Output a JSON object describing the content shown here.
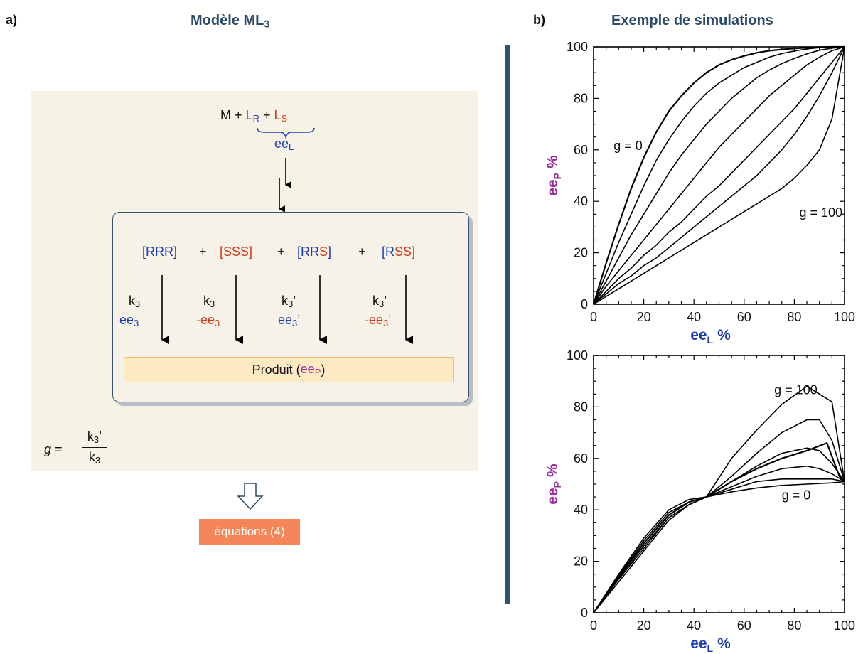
{
  "panel_a": {
    "label": "a)",
    "title": "Modèle ML",
    "title_sub": "3",
    "reagents": {
      "m": "M",
      "plus": "+",
      "lr": "L",
      "lr_sub": "R",
      "ls": "L",
      "ls_sub": "S",
      "eel": "ee",
      "eel_sub": "L"
    },
    "species": [
      {
        "pre": "[",
        "a": "RRR",
        "b": "",
        "post": "]"
      },
      {
        "pre": "[",
        "a": "",
        "b": "SSS",
        "post": "]"
      },
      {
        "pre": "[",
        "a": "RR",
        "b": "S",
        "post": "]"
      },
      {
        "pre": "[",
        "a": "R",
        "b": "SS",
        "post": "]"
      }
    ],
    "plus": "+",
    "rates": [
      {
        "k": "k",
        "k_sub": "3",
        "k_prime": "",
        "ee": "ee",
        "ee_sub": "3",
        "ee_prime": "",
        "ee_color": "blue"
      },
      {
        "k": "k",
        "k_sub": "3",
        "k_prime": "",
        "ee": "-ee",
        "ee_sub": "3",
        "ee_prime": "",
        "ee_color": "red"
      },
      {
        "k": "k",
        "k_sub": "3",
        "k_prime": "’",
        "ee": "ee",
        "ee_sub": "3",
        "ee_prime": "’",
        "ee_color": "blue"
      },
      {
        "k": "k",
        "k_sub": "3",
        "k_prime": "’",
        "ee": "-ee",
        "ee_sub": "3",
        "ee_prime": "’",
        "ee_color": "red"
      }
    ],
    "product": {
      "label": "Produit (",
      "ee": "ee",
      "ee_sub": "P",
      "close": ")"
    },
    "g_formula": {
      "g": "g",
      "eq": "=",
      "num": "k",
      "num_sub": "3",
      "num_prime": "’",
      "den": "k",
      "den_sub": "3"
    },
    "equations_button": "équations (4)"
  },
  "panel_b": {
    "label": "b)",
    "title": "Exemple de simulations"
  },
  "colors": {
    "blue": "#1f3fb0",
    "red": "#d03a17",
    "purple": "#9b2c9e",
    "header": "#2b4a6c",
    "divider": "#2f5273",
    "equations": "#f5865a"
  },
  "chart_data": [
    {
      "type": "line",
      "xlabel": "ee",
      "xlabel_sub": "L",
      "xlabel_unit": "%",
      "ylabel": "ee",
      "ylabel_sub": "P",
      "ylabel_unit": "%",
      "xlim": [
        0,
        100
      ],
      "ylim": [
        0,
        100
      ],
      "xticks": [
        0,
        20,
        40,
        60,
        80,
        100
      ],
      "yticks": [
        0,
        20,
        40,
        60,
        80,
        100
      ],
      "annotations": [
        {
          "text": "g = 0",
          "x": 8,
          "y": 60
        },
        {
          "text": "g = 100",
          "x": 82,
          "y": 34
        }
      ],
      "series": [
        {
          "x": [
            0,
            5,
            10,
            15,
            20,
            25,
            30,
            35,
            40,
            45,
            50,
            55,
            60,
            65,
            70,
            75,
            80,
            85,
            90,
            95,
            100
          ],
          "y": [
            0,
            16,
            31,
            45,
            57,
            67,
            75,
            81,
            86,
            90,
            93,
            95,
            96.5,
            97.7,
            98.5,
            99,
            99.4,
            99.7,
            99.9,
            100,
            100
          ]
        },
        {
          "x": [
            0,
            5,
            10,
            15,
            20,
            25,
            30,
            35,
            40,
            45,
            50,
            55,
            60,
            65,
            70,
            75,
            80,
            85,
            90,
            95,
            100
          ],
          "y": [
            0,
            12,
            24,
            35,
            46,
            56,
            64,
            71,
            77,
            82,
            86,
            89,
            92,
            94,
            96,
            97.4,
            98.4,
            99.2,
            99.7,
            100,
            100
          ]
        },
        {
          "x": [
            0,
            5,
            10,
            15,
            20,
            25,
            30,
            35,
            40,
            45,
            50,
            55,
            60,
            65,
            70,
            75,
            80,
            85,
            90,
            95,
            100
          ],
          "y": [
            0,
            9,
            18,
            27,
            35,
            43,
            51,
            58,
            64,
            70,
            75,
            80,
            84,
            88,
            91,
            93.5,
            95.5,
            97.3,
            98.7,
            99.5,
            100
          ]
        },
        {
          "x": [
            0,
            5,
            10,
            15,
            20,
            25,
            30,
            35,
            40,
            45,
            50,
            55,
            60,
            65,
            70,
            75,
            80,
            85,
            90,
            95,
            100
          ],
          "y": [
            0,
            7,
            13,
            19,
            25,
            31,
            37,
            43,
            49,
            55,
            61,
            66,
            71,
            76,
            81,
            85,
            89,
            93,
            96,
            98.5,
            100
          ]
        },
        {
          "x": [
            0,
            5,
            10,
            15,
            20,
            25,
            30,
            35,
            40,
            45,
            50,
            55,
            60,
            65,
            70,
            75,
            80,
            85,
            90,
            95,
            100
          ],
          "y": [
            0,
            5,
            10,
            14,
            19,
            23,
            28,
            32,
            37,
            42,
            46,
            51,
            56,
            61,
            66,
            71,
            76,
            82,
            88,
            94,
            100
          ]
        },
        {
          "x": [
            0,
            5,
            10,
            15,
            20,
            25,
            30,
            35,
            40,
            45,
            50,
            55,
            60,
            65,
            70,
            75,
            80,
            85,
            90,
            95,
            100
          ],
          "y": [
            0,
            4,
            8,
            11,
            15,
            18,
            22,
            26,
            30,
            34,
            38,
            42,
            46,
            50,
            55,
            60,
            66,
            73,
            81,
            90,
            100
          ]
        },
        {
          "x": [
            0,
            5,
            10,
            15,
            20,
            25,
            30,
            35,
            40,
            45,
            50,
            55,
            60,
            65,
            70,
            75,
            80,
            85,
            90,
            95,
            100
          ],
          "y": [
            0,
            3,
            6,
            9,
            12,
            15,
            18,
            21,
            24,
            27,
            30,
            33,
            36,
            39,
            42,
            45,
            49,
            54,
            60,
            72,
            100
          ]
        }
      ]
    },
    {
      "type": "line",
      "xlabel": "ee",
      "xlabel_sub": "L",
      "xlabel_unit": "%",
      "ylabel": "ee",
      "ylabel_sub": "P",
      "ylabel_unit": "%",
      "xlim": [
        0,
        100
      ],
      "ylim": [
        0,
        100
      ],
      "xticks": [
        0,
        20,
        40,
        60,
        80,
        100
      ],
      "yticks": [
        0,
        20,
        40,
        60,
        80,
        100
      ],
      "annotations": [
        {
          "text": "g = 100",
          "x": 72,
          "y": 85
        },
        {
          "text": "g = 0",
          "x": 75,
          "y": 44
        }
      ],
      "series": [
        {
          "x": [
            0,
            10,
            20,
            30,
            38,
            45,
            55,
            65,
            75,
            85,
            93,
            96,
            98,
            100
          ],
          "y": [
            0,
            14,
            27,
            38,
            43,
            45,
            51,
            56,
            60,
            63,
            66,
            58,
            53,
            51
          ]
        },
        {
          "x": [
            0,
            10,
            20,
            30,
            38,
            45,
            55,
            65,
            75,
            85,
            95,
            100
          ],
          "y": [
            0,
            12,
            24,
            36,
            42,
            45,
            60,
            71,
            81,
            88,
            82,
            51
          ]
        },
        {
          "x": [
            0,
            10,
            20,
            30,
            38,
            45,
            55,
            65,
            75,
            85,
            90,
            95,
            100
          ],
          "y": [
            0,
            13,
            25,
            37,
            42,
            45,
            53,
            62,
            70,
            75,
            75,
            67,
            51
          ]
        },
        {
          "x": [
            0,
            10,
            20,
            30,
            38,
            45,
            55,
            65,
            75,
            85,
            90,
            95,
            100
          ],
          "y": [
            0,
            13.5,
            26,
            37,
            42,
            45,
            51,
            57,
            62,
            64,
            63,
            58,
            51
          ]
        },
        {
          "x": [
            0,
            10,
            20,
            30,
            38,
            45,
            55,
            65,
            75,
            85,
            90,
            95,
            100
          ],
          "y": [
            0,
            14,
            27,
            38,
            43,
            45,
            49,
            53,
            56,
            57,
            56,
            54,
            51
          ]
        },
        {
          "x": [
            0,
            10,
            20,
            30,
            38,
            45,
            55,
            65,
            75,
            85,
            95,
            100
          ],
          "y": [
            0,
            14.5,
            28,
            39,
            43,
            45,
            48,
            51,
            52,
            52,
            52,
            51
          ]
        },
        {
          "x": [
            0,
            10,
            20,
            30,
            38,
            45,
            55,
            65,
            75,
            85,
            95,
            100
          ],
          "y": [
            0,
            15,
            29,
            40,
            44,
            45,
            47,
            48.5,
            49.5,
            50,
            50.5,
            51
          ]
        }
      ]
    }
  ]
}
